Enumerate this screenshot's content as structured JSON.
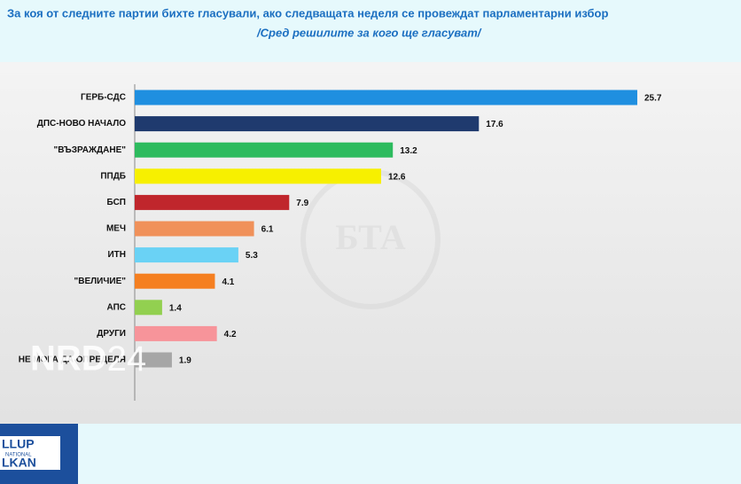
{
  "chart_data": {
    "type": "hbar",
    "title": "За коя от следните партии бихте  гласували,  ако следващата неделя се провеждат парламентарни избор",
    "subtitle": "/Сред решилите за кого ще гласуват/",
    "categories": [
      "ГЕРБ-СДС",
      "ДПС-НОВО НАЧАЛО",
      "\"ВЪЗРАЖДАНЕ\"",
      "ППДБ",
      "БСП",
      "МЕЧ",
      "ИТН",
      "\"ВЕЛИЧИЕ\"",
      "АПС",
      "ДРУГИ",
      "НЕ МОГА ДА ОПРЕДЕЛЯ"
    ],
    "values": [
      25.7,
      17.6,
      13.2,
      12.6,
      7.9,
      6.1,
      5.3,
      4.1,
      1.4,
      4.2,
      1.9
    ],
    "colors": [
      "#1f8fe0",
      "#1f3a6e",
      "#2dbb5e",
      "#f7f000",
      "#c0262c",
      "#f0915a",
      "#6ad2f5",
      "#f57f20",
      "#92d050",
      "#f7949a",
      "#a6a6a6"
    ],
    "xlim": [
      0,
      26
    ]
  },
  "logo": {
    "lines": [
      "LLUP",
      "NATIONAL",
      "LKAN"
    ]
  }
}
